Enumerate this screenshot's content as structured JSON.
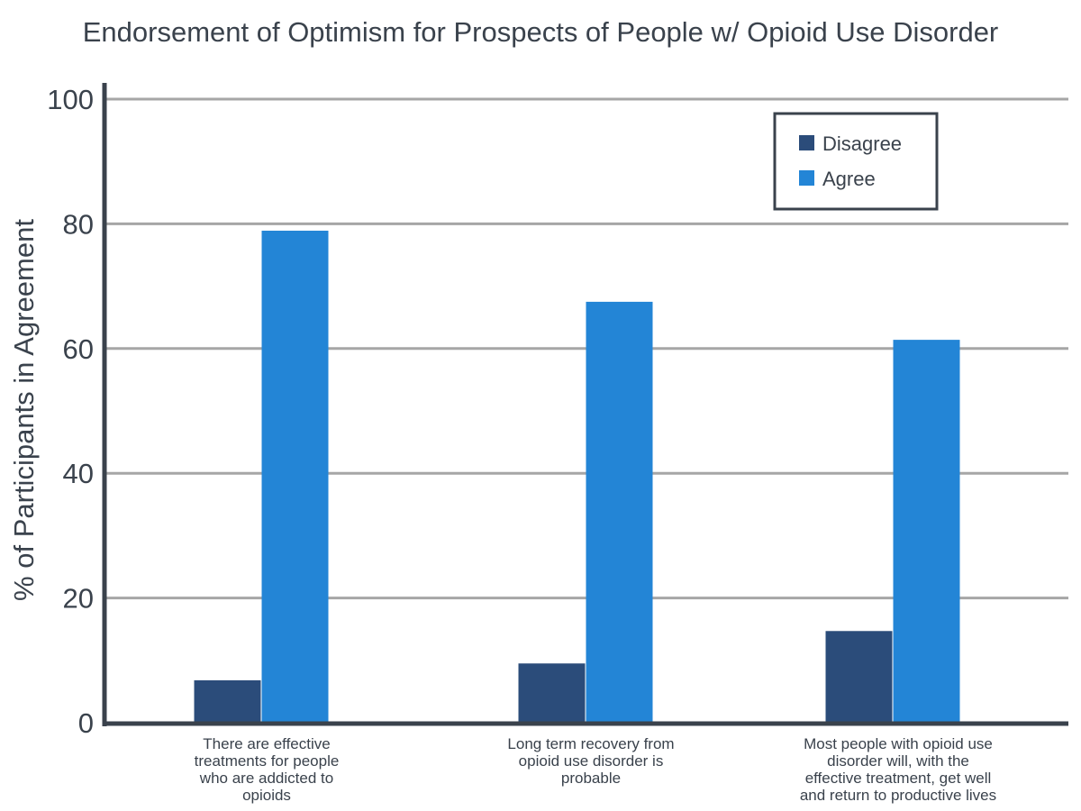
{
  "chart_data": {
    "type": "bar",
    "title": "Endorsement of Optimism for Prospects of People w/ Opioid Use Disorder",
    "xlabel": "",
    "ylabel": "% of Participants in Agreement",
    "ylim": [
      0,
      100
    ],
    "yticks": [
      0,
      20,
      40,
      60,
      80,
      100
    ],
    "grid": true,
    "legend_position": "top-right",
    "categories": [
      [
        "There are effective",
        "treatments for people",
        "who are addicted to",
        "opioids"
      ],
      [
        "Long term recovery from",
        "opioid use disorder is",
        "probable"
      ],
      [
        "Most people with opioid use",
        "disorder will, with the",
        "effective treatment, get well",
        "and return to productive lives"
      ]
    ],
    "series": [
      {
        "name": "Disagree",
        "color": "#2b4c7a",
        "values": [
          6.8,
          9.5,
          14.7
        ]
      },
      {
        "name": "Agree",
        "color": "#2385d6",
        "values": [
          78.9,
          67.5,
          61.4
        ]
      }
    ],
    "colors": {
      "grid": "#a6a6a6",
      "axis": "#3a424c",
      "text": "#3a424c"
    }
  }
}
